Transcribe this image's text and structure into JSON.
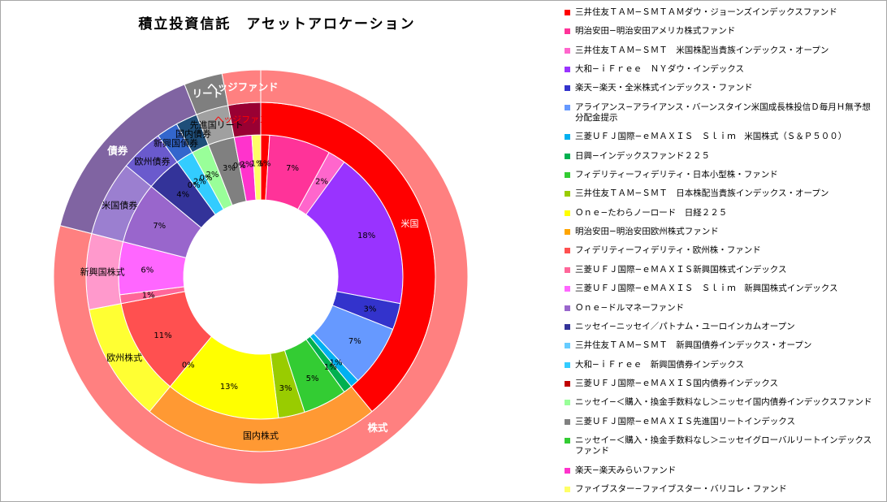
{
  "title": "積立投資信託　アセットアロケーション",
  "chart_data": {
    "type": "pie",
    "subtype": "multi-ring-doughnut",
    "title": "積立投資信託　アセットアロケーション",
    "unit": "%",
    "legend_position": "right",
    "funds": [
      {
        "name": "三井住友ＴＡＭ−ＳＭＴＡＭダウ・ジョーンズインデックスファンド",
        "value": 1,
        "color": "#FF0000"
      },
      {
        "name": "明治安田−明治安田アメリカ株式ファンド",
        "value": 7,
        "color": "#FF3399"
      },
      {
        "name": "三井住友ＴＡＭ−ＳＭＴ　米国株配当貴族インデックス・オープン",
        "value": 2,
        "color": "#FF66CC"
      },
      {
        "name": "大和−ｉＦｒｅｅ　ＮＹダウ・インデックス",
        "value": 18,
        "color": "#9933FF"
      },
      {
        "name": "楽天−楽天・全米株式インデックス・ファンド",
        "value": 3,
        "color": "#3333CC"
      },
      {
        "name": "アライアンス−アライアンス・バーンスタイン米国成長株投信Ｄ毎月Ｈ無予想分配金提示",
        "value": 7,
        "color": "#6699FF"
      },
      {
        "name": "三菱ＵＦＪ国際−ｅＭＡＸＩＳ　Ｓｌｉｍ　米国株式（Ｓ＆Ｐ５００）",
        "value": 1,
        "color": "#00B0F0"
      },
      {
        "name": "日興−インデックスファンド２２５",
        "value": 1,
        "color": "#00B050"
      },
      {
        "name": "フィデリティーフィデリティ・日本小型株・ファンド",
        "value": 5,
        "color": "#33CC33"
      },
      {
        "name": "三井住友ＴＡＭ−ＳＭＴ　日本株配当貴族インデックス・オープン",
        "value": 3,
        "color": "#99CC00"
      },
      {
        "name": "Ｏｎｅ−たわらノーロード　日経２２５",
        "value": 13,
        "color": "#FFFF00"
      },
      {
        "name": "明治安田−明治安田欧州株式ファンド",
        "value": 0,
        "color": "#FFA500"
      },
      {
        "name": "フィデリティーフィデリティ・欧州株・ファンド",
        "value": 11,
        "color": "#FF5050"
      },
      {
        "name": "三菱ＵＦＪ国際−ｅＭＡＸＩＳ新興国株式インデックス",
        "value": 1,
        "color": "#FF6699"
      },
      {
        "name": "三菱ＵＦＪ国際−ｅＭＡＸＩＳ　Ｓｌｉｍ　新興国株式インデックス",
        "value": 6,
        "color": "#FF66FF"
      },
      {
        "name": "Ｏｎｅ−ドルマネーファンド",
        "value": 7,
        "color": "#9966CC"
      },
      {
        "name": "ニッセイ−ニッセイ／パトナム・ユーロインカムオープン",
        "value": 4,
        "color": "#333399"
      },
      {
        "name": "三井住友ＴＡＭ−ＳＭＴ　新興国債券インデックス・オープン",
        "value": 0,
        "color": "#66CCFF"
      },
      {
        "name": "大和−ｉＦｒｅｅ　新興国債券インデックス",
        "value": 2,
        "color": "#33CCFF"
      },
      {
        "name": "三菱ＵＦＪ国際−ｅＭＡＸＩＳ国内債券インデックス",
        "value": 0,
        "color": "#C00000"
      },
      {
        "name": "ニッセイ−＜購入・換金手数料なし＞ニッセイ国内債券インデックスファンド",
        "value": 2,
        "color": "#99FF99"
      },
      {
        "name": "三菱ＵＦＪ国際−ｅＭＡＸＩＳ先進国リートインデックス",
        "value": 3,
        "color": "#808080"
      },
      {
        "name": "ニッセイ−＜購入・換金手数料なし＞ニッセイグローバルリートインデックスファンド",
        "value": 0,
        "color": "#33CC33"
      },
      {
        "name": "楽天−楽天みらいファンド",
        "value": 2,
        "color": "#FF33CC"
      },
      {
        "name": "ファイブスター−ファイブスター・バリコレ・ファンド",
        "value": 1,
        "color": "#FFFF66"
      }
    ],
    "regions": [
      {
        "name": "米国",
        "value": 39,
        "color": "#FF0000",
        "text": "#FFFFFF"
      },
      {
        "name": "国内株式",
        "value": 22,
        "color": "#FF9933",
        "text": "#000000"
      },
      {
        "name": "欧州株式",
        "value": 11,
        "color": "#FFFF33",
        "text": "#000000"
      },
      {
        "name": "新興国株式",
        "value": 7,
        "color": "#FF99CC",
        "text": "#000000"
      },
      {
        "name": "米国債券",
        "value": 7,
        "color": "#9B7FD0",
        "text": "#000000"
      },
      {
        "name": "欧州債券",
        "value": 4,
        "color": "#6A5ACD",
        "text": "#000000"
      },
      {
        "name": "新興国債券",
        "value": 2,
        "color": "#3366CC",
        "text": "#000000"
      },
      {
        "name": "国内債券",
        "value": 2,
        "color": "#1F4E79",
        "text": "#000000"
      },
      {
        "name": "先進国リート",
        "value": 3,
        "color": "#A0A0A0",
        "text": "#000000"
      },
      {
        "name": "ヘッジファンド",
        "value": 3,
        "color": "#990033",
        "text": "#FF0000"
      }
    ],
    "classes": [
      {
        "name": "株式",
        "value": 79,
        "color": "#FF8080",
        "text": "#FFFFFF"
      },
      {
        "name": "債券",
        "value": 15,
        "color": "#8064A2",
        "text": "#FFFFFF"
      },
      {
        "name": "リート",
        "value": 3,
        "color": "#7F7F7F",
        "text": "#FFFFFF"
      },
      {
        "name": "ヘッジファンド",
        "value": 3,
        "color": "#FF8080",
        "text": "#FFFFFF"
      }
    ]
  }
}
